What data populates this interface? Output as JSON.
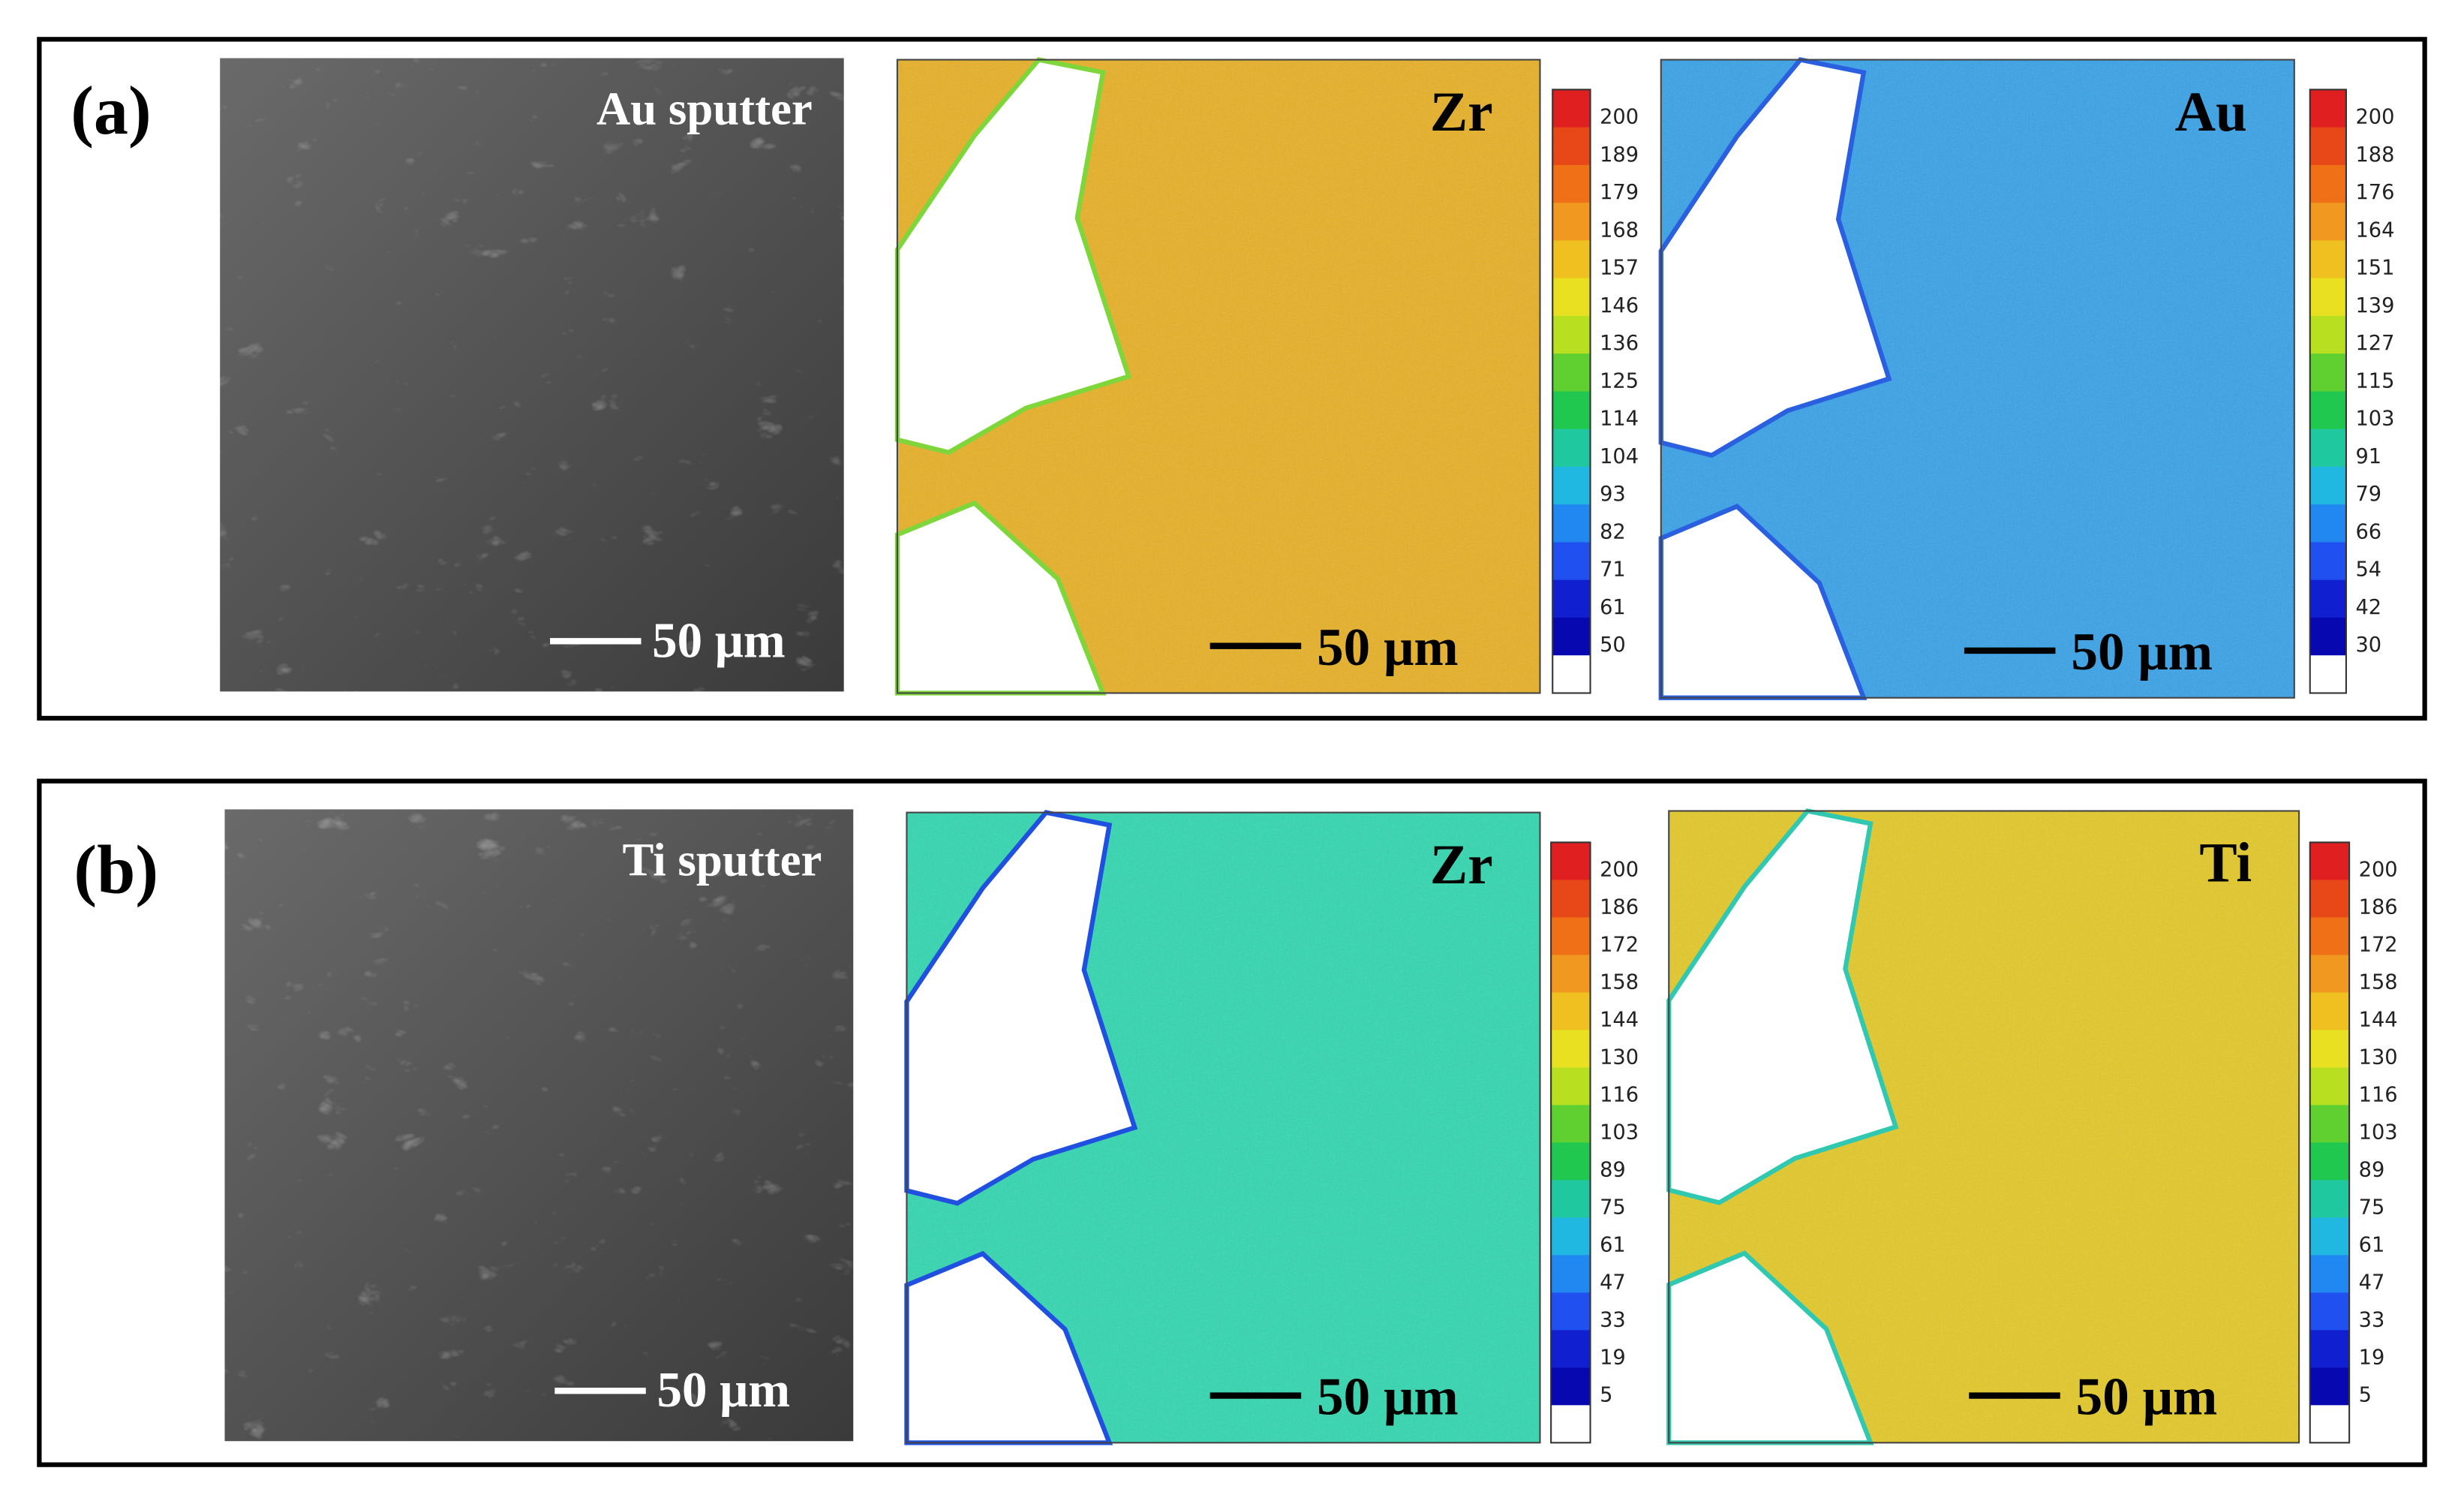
{
  "panels": [
    {
      "label": "(a)",
      "sem": {
        "caption": "Au sputter",
        "scale_bar": "50 μm"
      },
      "maps": [
        {
          "element": "Zr",
          "scale_bar": "50 μm",
          "colorbar": [
            200,
            189,
            179,
            168,
            157,
            146,
            136,
            125,
            114,
            104,
            93,
            82,
            71,
            61,
            50
          ]
        },
        {
          "element": "Au",
          "scale_bar": "50 μm",
          "colorbar": [
            200,
            188,
            176,
            164,
            151,
            139,
            127,
            115,
            103,
            91,
            79,
            66,
            54,
            42,
            30
          ]
        }
      ]
    },
    {
      "label": "(b)",
      "sem": {
        "caption": "Ti  sputter",
        "scale_bar": "50 μm"
      },
      "maps": [
        {
          "element": "Zr",
          "scale_bar": "50 μm",
          "colorbar": [
            200,
            186,
            172,
            158,
            144,
            130,
            116,
            103,
            89,
            75,
            61,
            47,
            33,
            19,
            5
          ]
        },
        {
          "element": "Ti",
          "scale_bar": "50 μm",
          "colorbar": [
            200,
            186,
            172,
            158,
            144,
            130,
            116,
            103,
            89,
            75,
            61,
            47,
            33,
            19,
            5
          ]
        }
      ]
    }
  ]
}
